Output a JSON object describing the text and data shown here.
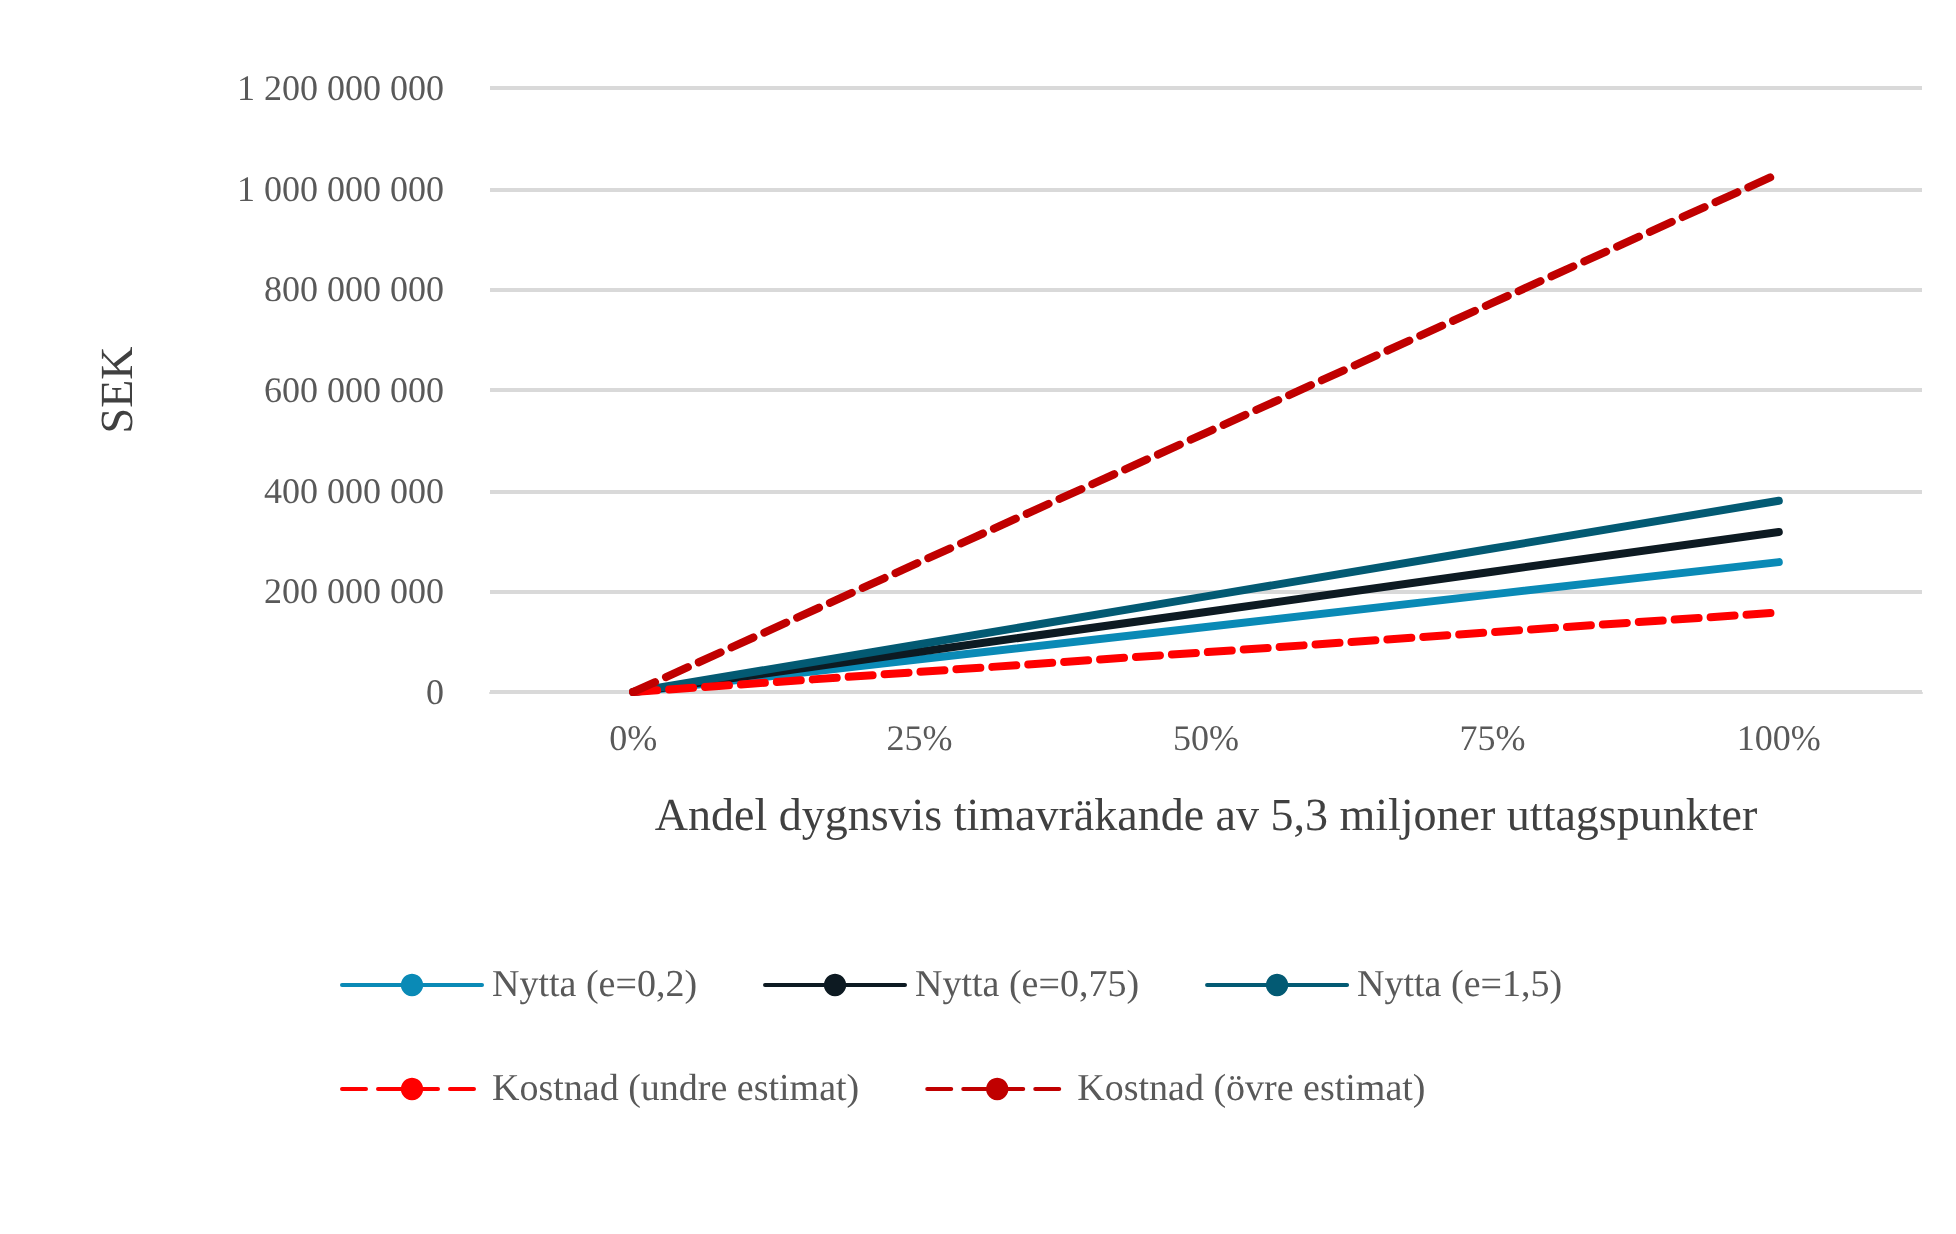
{
  "chart_data": {
    "type": "line",
    "xlabel": "Andel dygnsvis timavräkande av 5,3 miljoner uttagspunkter",
    "ylabel": "SEK",
    "categories": [
      "0%",
      "25%",
      "50%",
      "75%",
      "100%"
    ],
    "series": [
      {
        "name": "Nytta (e=0,2)",
        "color": "#0a8ab6",
        "values": [
          0,
          65000000,
          129000000,
          194000000,
          258000000
        ]
      },
      {
        "name": "Nytta (e=0,75)",
        "color": "#0d1a22",
        "values": [
          0,
          80000000,
          159000000,
          239000000,
          318000000
        ]
      },
      {
        "name": "Nytta (e=1,5)",
        "color": "#035a73",
        "values": [
          0,
          95000000,
          190000000,
          285000000,
          380000000
        ]
      },
      {
        "name": "Kostnad (undre estimat)",
        "color": "#ff0000",
        "line_style": "dashed",
        "values": [
          0,
          40000000,
          79000000,
          119000000,
          158000000
        ]
      },
      {
        "name": "Kostnad (övre estimat)",
        "color": "#c00000",
        "line_style": "dashed",
        "values": [
          0,
          258000000,
          515000000,
          773000000,
          1030000000
        ]
      }
    ],
    "ylim": [
      0,
      1200000000
    ],
    "yticks": [
      {
        "value": 0,
        "label": "0"
      },
      {
        "value": 200000000,
        "label": "200 000 000"
      },
      {
        "value": 400000000,
        "label": "400 000 000"
      },
      {
        "value": 600000000,
        "label": "600 000 000"
      },
      {
        "value": 800000000,
        "label": "800 000 000"
      },
      {
        "value": 1000000000,
        "label": "1 000 000 000"
      },
      {
        "value": 1200000000,
        "label": "1 200 000 000"
      }
    ],
    "grid": "y",
    "legend": "bottom",
    "marker": "none",
    "line_style": "solid"
  }
}
